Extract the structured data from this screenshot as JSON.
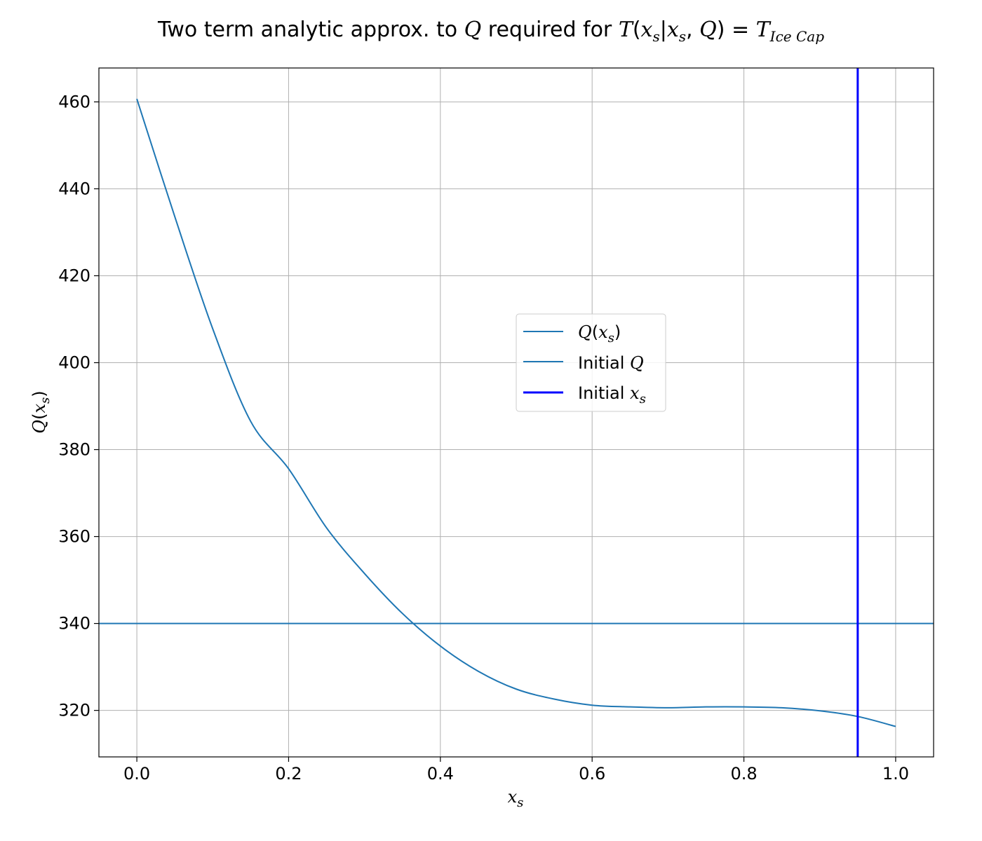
{
  "chart_data": {
    "type": "line",
    "title": {
      "prefix": "Two term analytic approx. to ",
      "var1": "Q",
      "middle": " required for ",
      "fn": "T",
      "open": "(",
      "a": "x",
      "a_sub": "s",
      "bar": "|",
      "b": "x",
      "b_sub": "s",
      "comma": ", ",
      "c": "Q",
      "close": ")",
      "eq": " = ",
      "rhs": "T",
      "rhs_sub": "Ice Cap"
    },
    "xlabel": {
      "main": "x",
      "sub": "s"
    },
    "ylabel": {
      "main": "Q",
      "open": "(",
      "var": "x",
      "sub": "s",
      "close": ")"
    },
    "xlim": [
      -0.05,
      1.05
    ],
    "ylim": [
      309.3,
      467.8
    ],
    "xticks": [
      "0.0",
      "0.2",
      "0.4",
      "0.6",
      "0.8",
      "1.0"
    ],
    "xtick_values": [
      0.0,
      0.2,
      0.4,
      0.6,
      0.8,
      1.0
    ],
    "yticks": [
      "320",
      "340",
      "360",
      "380",
      "400",
      "420",
      "440",
      "460"
    ],
    "ytick_values": [
      320,
      340,
      360,
      380,
      400,
      420,
      440,
      460
    ],
    "grid": true,
    "legend_position": "center-right",
    "series": [
      {
        "name": "Q(x_s)",
        "color": "#1f77b4",
        "x": [
          0.0,
          0.05,
          0.1,
          0.15,
          0.2,
          0.25,
          0.3,
          0.35,
          0.4,
          0.45,
          0.5,
          0.55,
          0.6,
          0.65,
          0.7,
          0.75,
          0.8,
          0.85,
          0.9,
          0.95,
          1.0
        ],
        "y": [
          460.7,
          433.6,
          407.8,
          386.5,
          375.6,
          362.0,
          351.5,
          342.3,
          334.8,
          329.0,
          324.9,
          322.6,
          321.2,
          320.8,
          320.6,
          320.8,
          320.8,
          320.6,
          319.9,
          318.6,
          316.3
        ]
      }
    ],
    "hlines": [
      {
        "name": "Initial Q",
        "y": 340,
        "color": "#1f77b4"
      }
    ],
    "vlines": [
      {
        "name": "Initial x_s",
        "x": 0.95,
        "color": "#0000ff"
      }
    ],
    "legend": [
      {
        "kind": "ital",
        "main": "Q",
        "open": "(",
        "var": "x",
        "sub": "s",
        "close": ")",
        "color": "#1f77b4",
        "width": 2
      },
      {
        "kind": "plain",
        "text": "Initial ",
        "var": "Q",
        "color": "#1f77b4",
        "width": 2
      },
      {
        "kind": "plain",
        "text": "Initial ",
        "var": "x",
        "sub": "s",
        "color": "#0000ff",
        "width": 3
      }
    ]
  }
}
